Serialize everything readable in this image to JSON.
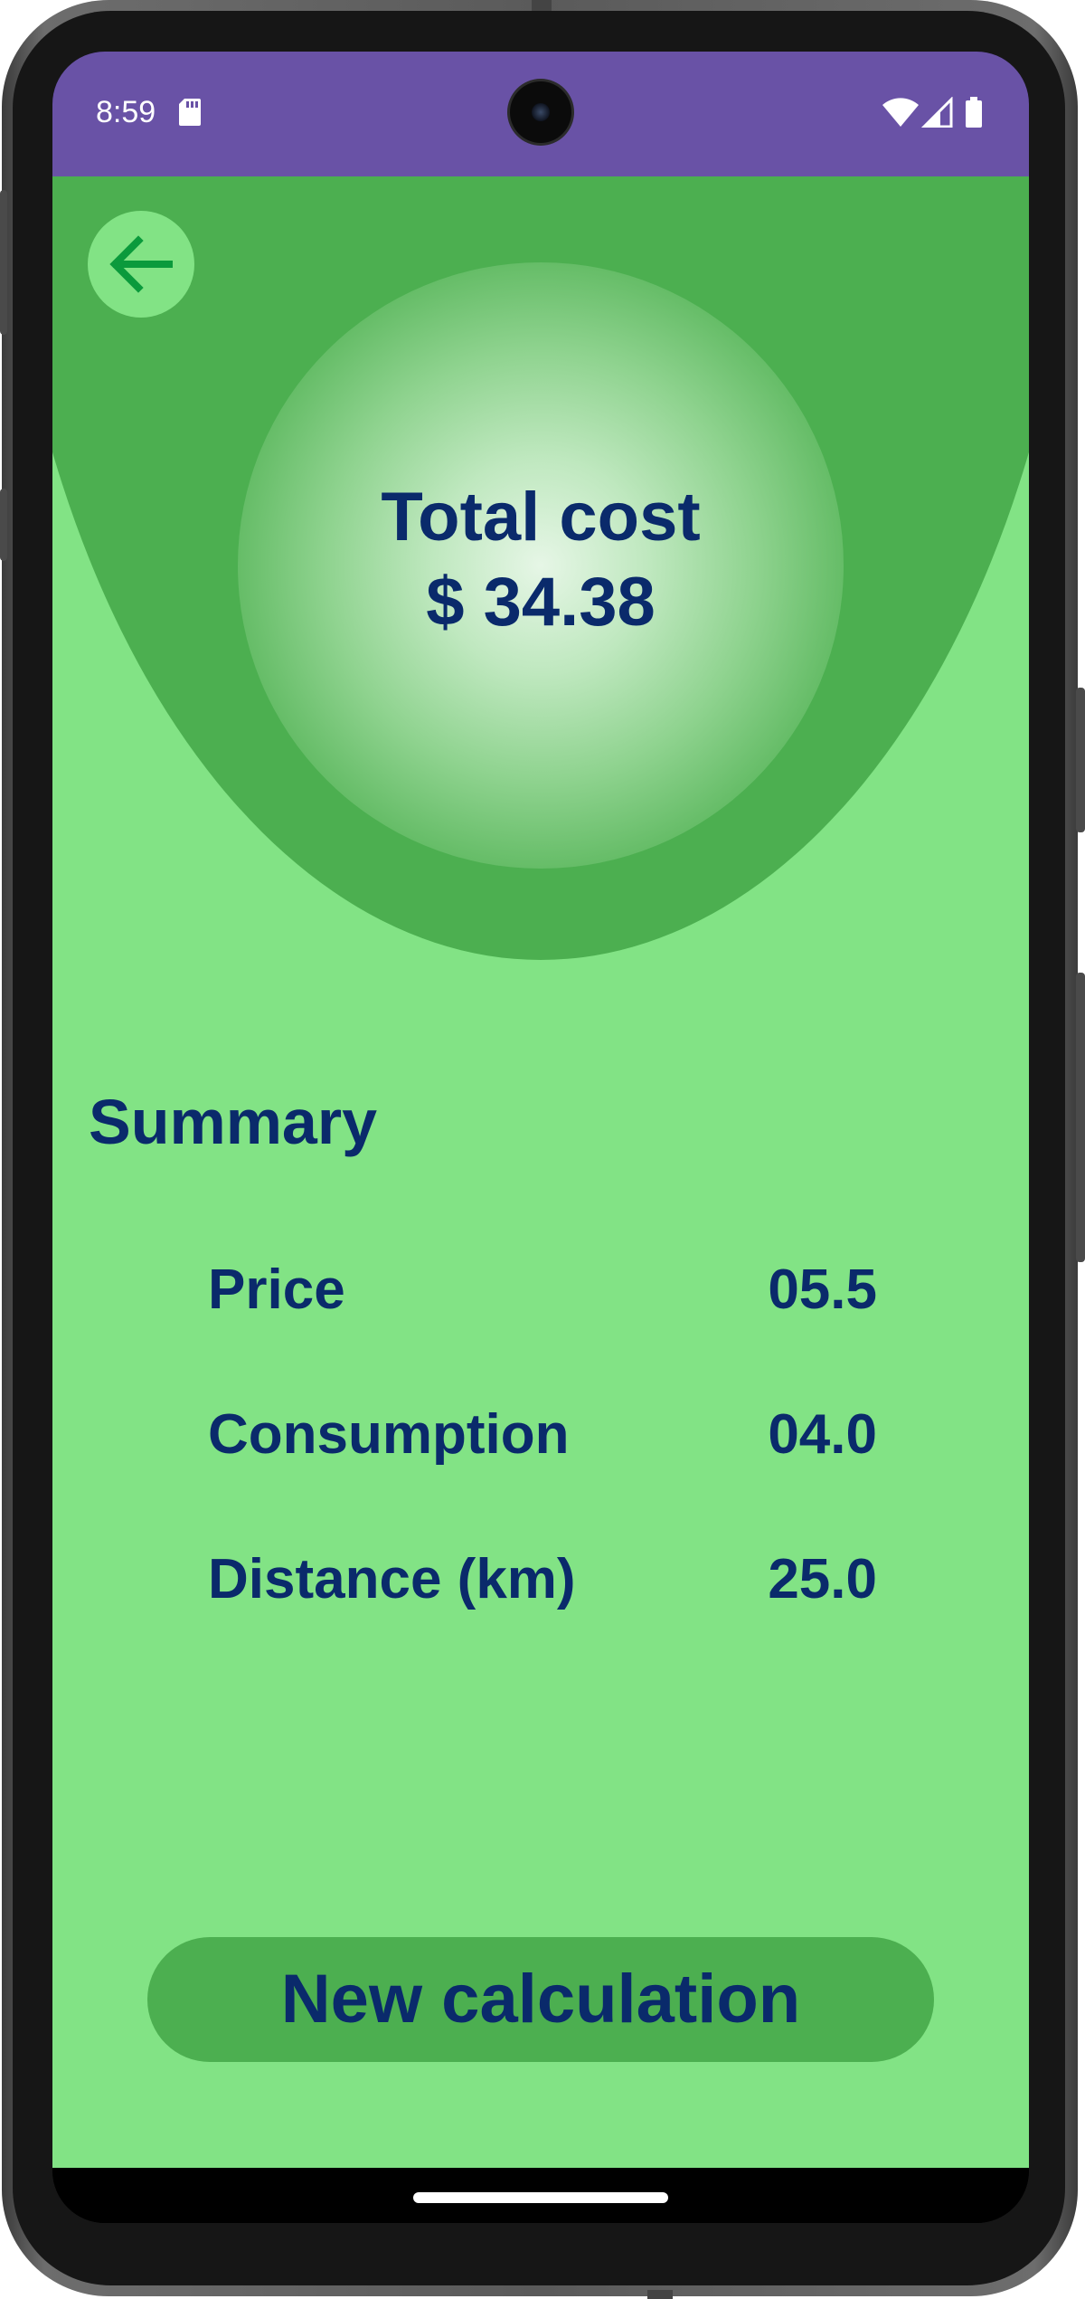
{
  "status_bar": {
    "time": "8:59",
    "icons": [
      "sd-card-icon",
      "wifi-icon",
      "signal-icon",
      "battery-icon"
    ],
    "background": "#6952a6"
  },
  "header": {
    "back_icon": "arrow-left-icon",
    "total_label": "Total cost",
    "total_value": "$ 34.38"
  },
  "summary": {
    "title": "Summary",
    "rows": [
      {
        "label": "Price",
        "value": "05.5"
      },
      {
        "label": "Consumption",
        "value": "04.0"
      },
      {
        "label": "Distance (km)",
        "value": "25.0"
      }
    ]
  },
  "actions": {
    "new_calculation_label": "New calculation"
  },
  "colors": {
    "app_background": "#82e385",
    "header_green": "#4caf50",
    "text_navy": "#0a2a6b",
    "back_arrow": "#0b9a3c"
  }
}
